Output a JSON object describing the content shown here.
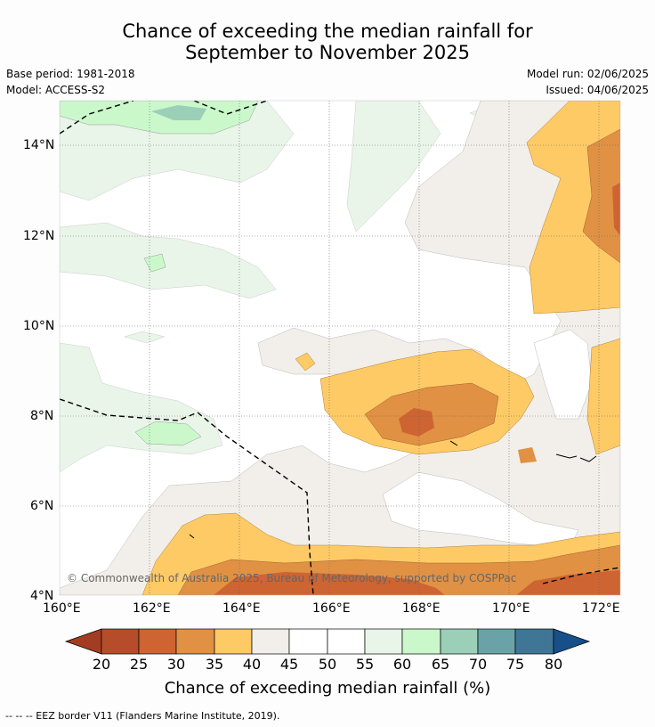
{
  "header": {
    "title_line1": "Chance of exceeding the median rainfall for",
    "title_line2": "September to November 2025",
    "base_period": "Base period: 1981-2018",
    "model": "Model: ACCESS-S2",
    "model_run": "Model run: 02/06/2025",
    "issued": "Issued: 04/06/2025"
  },
  "map": {
    "lon_ticks": [
      "160°E",
      "162°E",
      "164°E",
      "166°E",
      "168°E",
      "170°E",
      "172°E"
    ],
    "lat_ticks": [
      "14°N",
      "12°N",
      "10°N",
      "8°N",
      "6°N",
      "4°N"
    ],
    "copyright": "© Commonwealth of Australia 2025, Bureau of Meteorology, supported by COSPPac",
    "grid": true,
    "eez_border_style": "dashed"
  },
  "colorbar": {
    "labels": [
      "20",
      "25",
      "30",
      "35",
      "40",
      "45",
      "50",
      "55",
      "60",
      "65",
      "70",
      "75",
      "80"
    ],
    "colors": [
      "#a33d22",
      "#b64d2a",
      "#cd6432",
      "#e09144",
      "#fdca65",
      "#f2eee9",
      "#ffffff",
      "#ffffff",
      "#e9f5e9",
      "#cbf8cb",
      "#9bcfb8",
      "#6aa3a7",
      "#3f7695",
      "#175089"
    ],
    "title": "Chance of exceeding median rainfall (%)"
  },
  "footnote": "--  --  -- EEZ border V11 (Flanders Marine Institute, 2019)."
}
